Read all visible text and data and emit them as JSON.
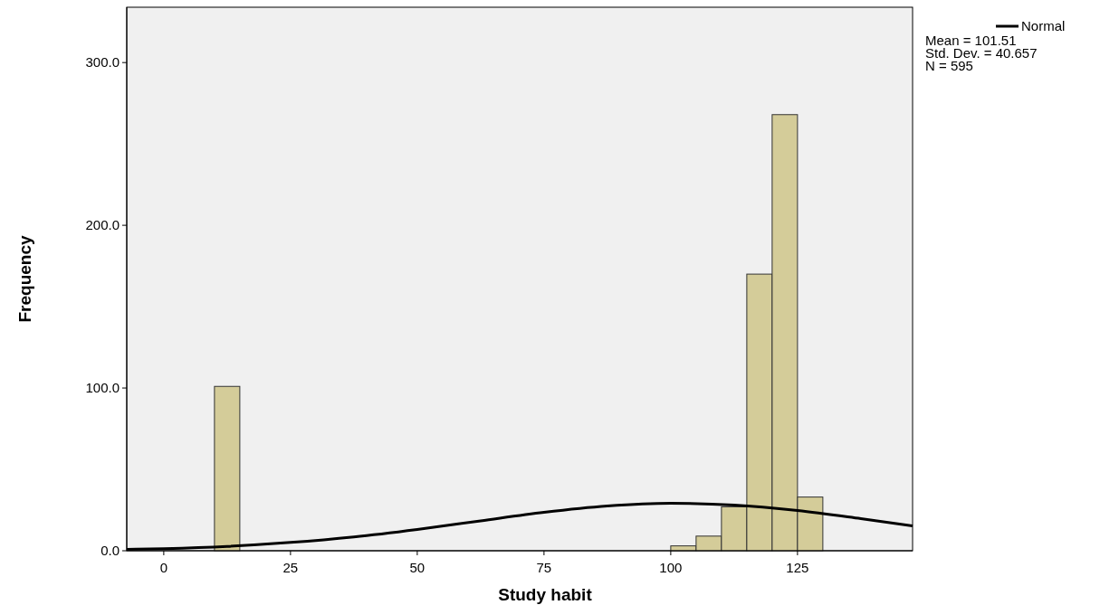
{
  "chart_data": {
    "type": "histogram",
    "xlabel": "Study habit",
    "ylabel": "Frequency",
    "bins": [
      10,
      15,
      20,
      25,
      30,
      35,
      40,
      45,
      50,
      55,
      60,
      65,
      70,
      75,
      80,
      85,
      90,
      95,
      100,
      105,
      110,
      115,
      120,
      125,
      130
    ],
    "series": [
      {
        "color": "#d4cc99",
        "values": [
          101,
          0,
          0,
          0,
          0,
          0,
          0,
          0,
          0,
          0,
          0,
          0,
          0,
          0,
          0,
          0,
          0,
          0,
          3,
          9,
          27,
          170,
          268,
          33
        ]
      },
      {
        "type": "line",
        "name": "Normal",
        "color": "#000000",
        "x": [
          -7.3,
          0,
          12.5,
          25,
          37.5,
          50,
          62.5,
          75,
          87.5,
          100,
          112.5,
          125,
          137.5,
          147.7
        ],
        "values": [
          0.8,
          1.3,
          2.7,
          5.1,
          8.5,
          13.1,
          18.4,
          23.6,
          27.5,
          29.2,
          28.1,
          24.7,
          19.7,
          15.3
        ]
      }
    ],
    "xlim": [
      -7.3,
      147.7
    ],
    "ylim": [
      0,
      334
    ],
    "xticks": [
      0,
      25,
      50,
      75,
      100,
      125
    ],
    "yticks": [
      {
        "value": 0,
        "label": "0.0"
      },
      {
        "value": 100,
        "label": "100.0"
      },
      {
        "value": 200,
        "label": "200.0"
      },
      {
        "value": 300,
        "label": "300.0"
      }
    ],
    "legend": "top right",
    "line_style": "solid",
    "grid": false,
    "annotations": [
      "Mean = 101.51",
      "Std. Dev. = 40.657",
      "N = 595"
    ]
  }
}
